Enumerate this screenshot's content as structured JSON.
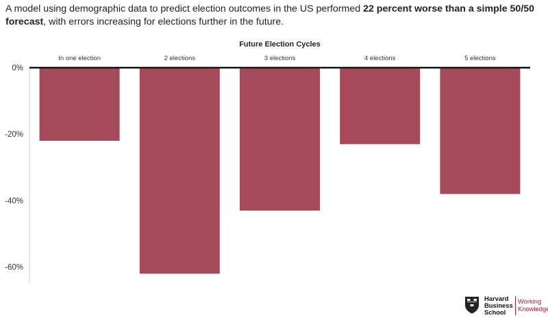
{
  "header": {
    "title_start": "A model using demographic data to predict election outcomes in the US performed ",
    "title_bold": "22 percent worse than a simple 50/50 forecast",
    "title_end": ", with errors increasing for elections further in the future."
  },
  "chart_data": {
    "type": "bar",
    "title": "",
    "xlabel": "Future Election Cycles",
    "ylabel": "",
    "categories": [
      "In one election",
      "2 elections",
      "3 elections",
      "4 elections",
      "5 elections"
    ],
    "values": [
      -22,
      -62,
      -43,
      -23,
      -38
    ],
    "ylim": [
      -64,
      0
    ],
    "yticks": [
      0,
      -20,
      -40,
      -60
    ],
    "ytick_labels": [
      "0%",
      "-20%",
      "-40%",
      "-60%"
    ],
    "x_axis_position": "top",
    "grid": false,
    "legend": "none",
    "bar_color": "#a54a5b",
    "axis_color": "#111111"
  },
  "footer": {
    "logo_line1": "Harvard",
    "logo_line2": "Business",
    "logo_line3": "School",
    "wk_line1": "Working",
    "wk_line2": "Knowledge",
    "brand_color": "#a51c30"
  }
}
